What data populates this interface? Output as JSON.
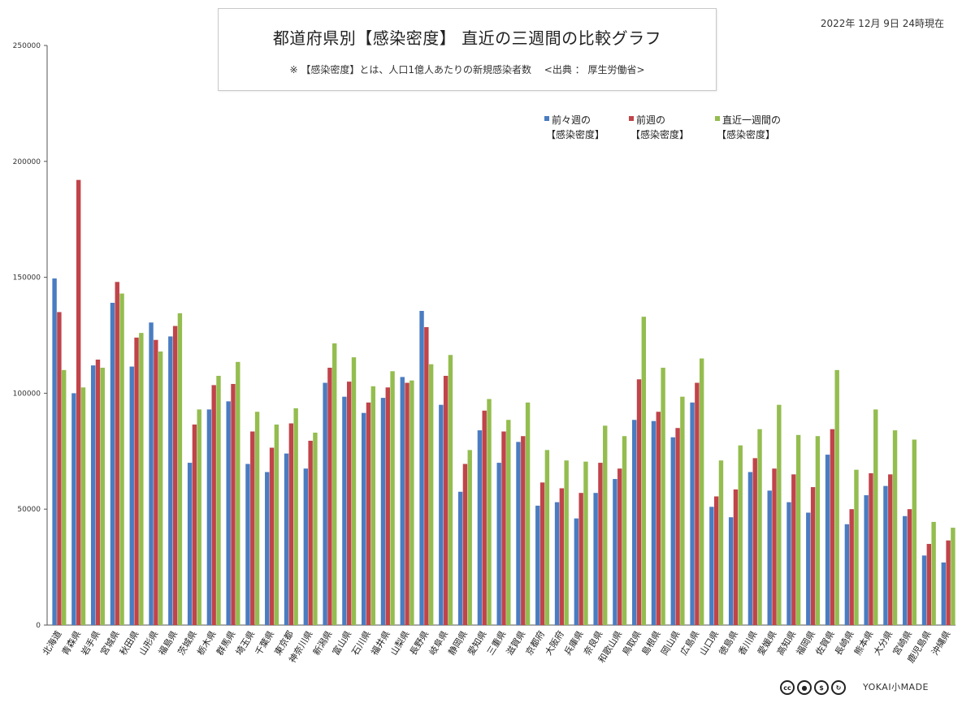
{
  "header": {
    "title": "都道府県別【感染密度】 直近の三週間の比較グラフ",
    "subtitle": "※ 【感染密度】とは、人口1億人あたりの新規感染者数　 <出典 ： 厚生労働省>",
    "date": "2022年 12月 9日 24時現在"
  },
  "footer": {
    "logo": "YOKAI小MADE"
  },
  "chart_data": {
    "type": "bar",
    "title": "都道府県別【感染密度】 直近の三週間の比較グラフ",
    "ylim": [
      0,
      250000
    ],
    "yticks": [
      0,
      50000,
      100000,
      150000,
      200000,
      250000
    ],
    "ytick_labels": [
      "0",
      "50000",
      "100000",
      "150000",
      "200000",
      "250000"
    ],
    "grid": false,
    "legend_position": "top-right",
    "categories": [
      "北海道",
      "青森県",
      "岩手県",
      "宮城県",
      "秋田県",
      "山形県",
      "福島県",
      "茨城県",
      "栃木県",
      "群馬県",
      "埼玉県",
      "千葉県",
      "東京都",
      "神奈川県",
      "新潟県",
      "富山県",
      "石川県",
      "福井県",
      "山梨県",
      "長野県",
      "岐阜県",
      "静岡県",
      "愛知県",
      "三重県",
      "滋賀県",
      "京都府",
      "大阪府",
      "兵庫県",
      "奈良県",
      "和歌山県",
      "鳥取県",
      "島根県",
      "岡山県",
      "広島県",
      "山口県",
      "徳島県",
      "香川県",
      "愛媛県",
      "高知県",
      "福岡県",
      "佐賀県",
      "長崎県",
      "熊本県",
      "大分県",
      "宮崎県",
      "鹿児島県",
      "沖縄県"
    ],
    "series": [
      {
        "name": "前々週の【感染密度】",
        "color": "#4a7cc1",
        "values": [
          149500,
          100000,
          112000,
          139000,
          111500,
          130500,
          124500,
          70000,
          93000,
          96500,
          69500,
          66000,
          74000,
          67500,
          104500,
          98500,
          91500,
          98000,
          107000,
          135500,
          95000,
          57500,
          84000,
          70000,
          79000,
          51500,
          53000,
          46000,
          57000,
          63000,
          88500,
          88000,
          81000,
          96000,
          51000,
          46500,
          66000,
          58000,
          53000,
          48500,
          73500,
          43500,
          56000,
          60000,
          47000,
          30000,
          27000
        ]
      },
      {
        "name": "前週の【感染密度】",
        "color": "#c0444a",
        "values": [
          135000,
          192000,
          114500,
          148000,
          124000,
          123000,
          129000,
          86500,
          103500,
          104000,
          83500,
          76500,
          87000,
          79500,
          111000,
          105000,
          96000,
          102500,
          104500,
          128500,
          107500,
          69500,
          92500,
          83500,
          81500,
          61500,
          59000,
          57000,
          70000,
          67500,
          106000,
          92000,
          85000,
          104500,
          55500,
          58500,
          72000,
          67500,
          65000,
          59500,
          84500,
          50000,
          65500,
          65000,
          50000,
          35000,
          36500
        ]
      },
      {
        "name": "直近一週間の【感染密度】",
        "color": "#94bd4f",
        "values": [
          110000,
          102500,
          111000,
          143000,
          126000,
          118000,
          134500,
          93000,
          107500,
          113500,
          92000,
          86500,
          93500,
          83000,
          121500,
          115500,
          103000,
          109500,
          105500,
          112500,
          116500,
          75500,
          97500,
          88500,
          96000,
          75500,
          71000,
          70500,
          86000,
          81500,
          133000,
          111000,
          98500,
          115000,
          71000,
          77500,
          84500,
          95000,
          82000,
          81500,
          110000,
          67000,
          93000,
          84000,
          80000,
          44500,
          42000
        ]
      }
    ],
    "legend": [
      {
        "line1": "前々週の",
        "line2": "【感染密度】"
      },
      {
        "line1": "前週の",
        "line2": "【感染密度】"
      },
      {
        "line1": "直近一週間の",
        "line2": "【感染密度】"
      }
    ]
  }
}
